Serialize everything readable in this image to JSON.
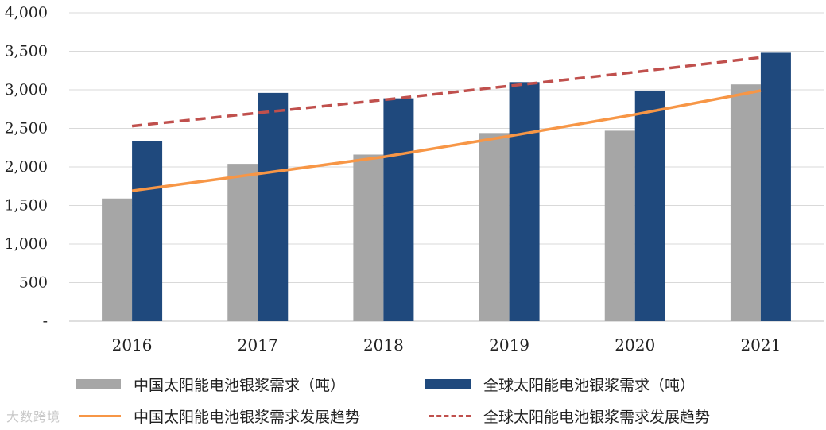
{
  "chart_data": {
    "type": "bar",
    "categories": [
      "2016",
      "2017",
      "2018",
      "2019",
      "2020",
      "2021"
    ],
    "series": [
      {
        "name": "中国太阳能电池银浆需求（吨）",
        "kind": "bar",
        "color": "#a6a6a6",
        "values": [
          1590,
          2040,
          2160,
          2440,
          2470,
          3070
        ]
      },
      {
        "name": "全球太阳能电池银浆需求（吨）",
        "kind": "bar",
        "color": "#1f497d",
        "values": [
          2330,
          2960,
          2890,
          3100,
          2990,
          3480
        ]
      },
      {
        "name": "中国太阳能电池银浆需求发展趋势",
        "kind": "trend-solid",
        "color": "#f79646",
        "values": [
          1690,
          1910,
          2130,
          2400,
          2680,
          2990
        ]
      },
      {
        "name": "全球太阳能电池银浆需求发展趋势",
        "kind": "trend-dashed",
        "color": "#c0504d",
        "values": [
          2530,
          2700,
          2870,
          3050,
          3230,
          3420
        ]
      }
    ],
    "yticks": [
      {
        "value": 0,
        "label": "-"
      },
      {
        "value": 500,
        "label": "500"
      },
      {
        "value": 1000,
        "label": "1,000"
      },
      {
        "value": 1500,
        "label": "1,500"
      },
      {
        "value": 2000,
        "label": "2,000"
      },
      {
        "value": 2500,
        "label": "2,500"
      },
      {
        "value": 3000,
        "label": "3,000"
      },
      {
        "value": 3500,
        "label": "3,500"
      },
      {
        "value": 4000,
        "label": "4,000"
      }
    ],
    "ylim": [
      0,
      4000
    ],
    "grid": true,
    "legend_position": "bottom",
    "title": "",
    "xlabel": "",
    "ylabel": ""
  },
  "legend": {
    "china_bar": "中国太阳能电池银浆需求（吨）",
    "global_bar": "全球太阳能电池银浆需求（吨）",
    "china_trend": "中国太阳能电池银浆需求发展趋势",
    "global_trend": "全球太阳能电池银浆需求发展趋势"
  },
  "watermark": "大数跨境"
}
